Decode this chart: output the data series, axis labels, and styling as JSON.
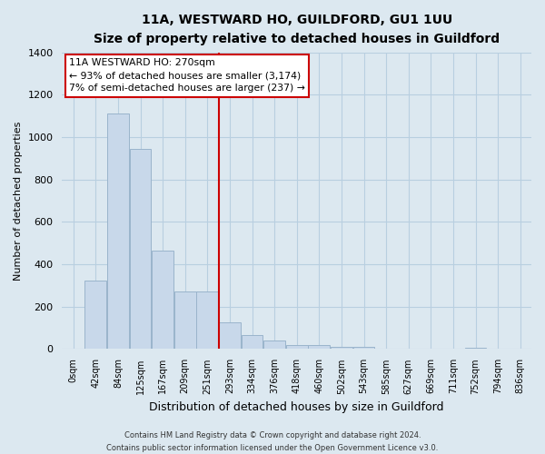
{
  "title": "11A, WESTWARD HO, GUILDFORD, GU1 1UU",
  "subtitle": "Size of property relative to detached houses in Guildford",
  "xlabel": "Distribution of detached houses by size in Guildford",
  "ylabel": "Number of detached properties",
  "bar_labels": [
    "0sqm",
    "42sqm",
    "84sqm",
    "125sqm",
    "167sqm",
    "209sqm",
    "251sqm",
    "293sqm",
    "334sqm",
    "376sqm",
    "418sqm",
    "460sqm",
    "502sqm",
    "543sqm",
    "585sqm",
    "627sqm",
    "669sqm",
    "711sqm",
    "752sqm",
    "794sqm",
    "836sqm"
  ],
  "bar_values": [
    0,
    325,
    1110,
    945,
    465,
    270,
    270,
    125,
    65,
    40,
    18,
    18,
    10,
    10,
    0,
    0,
    0,
    0,
    5,
    0,
    0
  ],
  "bar_color": "#c8d8ea",
  "bar_edge_color": "#9ab4cc",
  "ylim": [
    0,
    1400
  ],
  "yticks": [
    0,
    200,
    400,
    600,
    800,
    1000,
    1200,
    1400
  ],
  "vline_x_bar": 7,
  "vline_color": "#cc0000",
  "annotation_title": "11A WESTWARD HO: 270sqm",
  "annotation_line1": "← 93% of detached houses are smaller (3,174)",
  "annotation_line2": "7% of semi-detached houses are larger (237) →",
  "annotation_box_color": "#ffffff",
  "annotation_box_edge": "#cc0000",
  "footer_line1": "Contains HM Land Registry data © Crown copyright and database right 2024.",
  "footer_line2": "Contains public sector information licensed under the Open Government Licence v3.0.",
  "bg_color": "#dce8f0",
  "plot_bg_color": "#dce8f0",
  "grid_color": "#b8cfe0"
}
